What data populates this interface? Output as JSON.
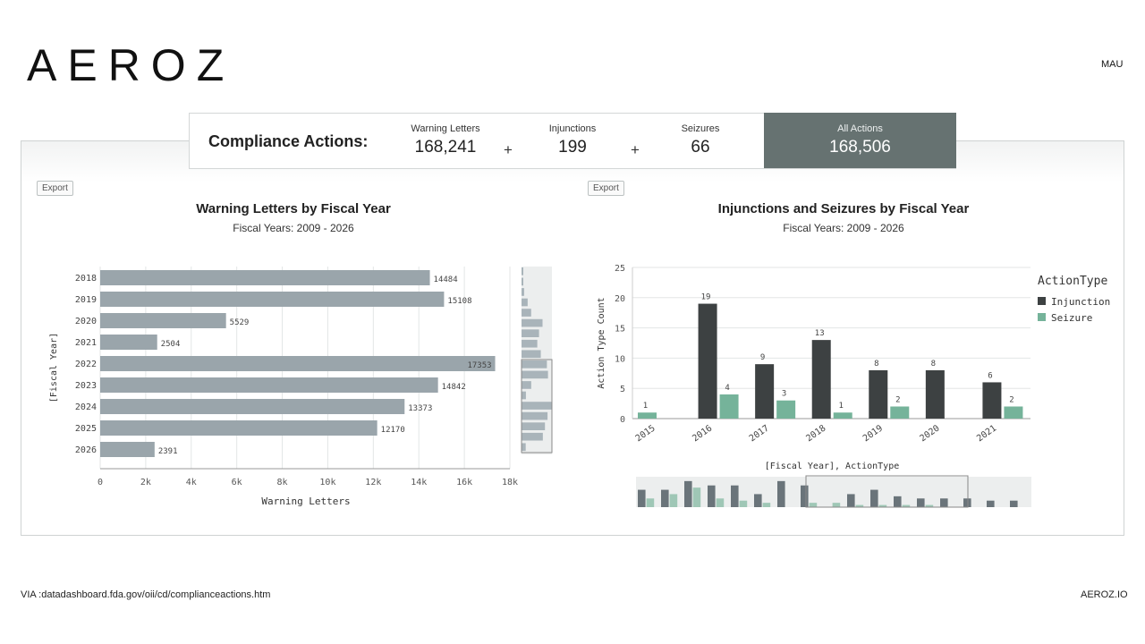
{
  "brand": "AEROZ",
  "tag": "MAU",
  "summary": {
    "title": "Compliance Actions:",
    "warning_letters": {
      "label": "Warning Letters",
      "value": "168,241"
    },
    "injunctions": {
      "label": "Injunctions",
      "value": "199"
    },
    "seizures": {
      "label": "Seizures",
      "value": "66"
    },
    "plus": "+",
    "all_actions": {
      "label": "All Actions",
      "value": "168,506"
    }
  },
  "export_label": "Export",
  "footer": {
    "source": "VIA :datadashboard.fda.gov/oii/cd/complianceactions.htm",
    "site": "AEROZ.IO"
  },
  "chart_data": [
    {
      "type": "bar",
      "orientation": "horizontal",
      "title": "Warning Letters by Fiscal Year",
      "subtitle": "Fiscal Years: 2009 - 2026",
      "ylabel": "[Fiscal Year]",
      "xlabel": "Warning Letters",
      "categories": [
        "2018",
        "2019",
        "2020",
        "2021",
        "2022",
        "2023",
        "2024",
        "2025",
        "2026"
      ],
      "values": [
        14484,
        15108,
        5529,
        2504,
        17353,
        14842,
        13373,
        12170,
        2391
      ],
      "xlim": [
        0,
        18000
      ],
      "xticks": [
        0,
        2000,
        4000,
        6000,
        8000,
        10000,
        12000,
        14000,
        16000,
        18000
      ],
      "xtick_labels": [
        "0",
        "2k",
        "4k",
        "6k",
        "8k",
        "10k",
        "12k",
        "14k",
        "16k",
        "18k"
      ],
      "bar_color": "#9aa5ab",
      "overview_values": [
        200,
        300,
        1500,
        3500,
        5500,
        12000,
        10000,
        9000,
        11000,
        14484,
        15108,
        5529,
        2504,
        17353,
        14842,
        13373,
        12170,
        2391
      ]
    },
    {
      "type": "bar",
      "title": "Injunctions and Seizures by Fiscal Year",
      "subtitle": "Fiscal Years: 2009 - 2026",
      "ylabel": "Action Type Count",
      "xlabel": "[Fiscal Year], ActionType",
      "legend_title": "ActionType",
      "categories": [
        "2015",
        "2016",
        "2017",
        "2018",
        "2019",
        "2020",
        "2021"
      ],
      "ylim": [
        0,
        25
      ],
      "yticks": [
        0,
        5,
        10,
        15,
        20,
        25
      ],
      "series": [
        {
          "name": "Injunction",
          "color": "#3d4142",
          "values": [
            null,
            19,
            9,
            13,
            8,
            8,
            6
          ]
        },
        {
          "name": "Seizure",
          "color": "#75b39a",
          "values": [
            1,
            4,
            3,
            1,
            2,
            null,
            2
          ]
        }
      ],
      "overview_injunction": [
        8,
        8,
        12,
        10,
        10,
        6,
        12,
        10,
        0,
        6,
        8,
        5,
        4,
        4,
        4,
        3,
        3
      ],
      "overview_seizure": [
        4,
        6,
        9,
        4,
        3,
        2,
        0,
        2,
        2,
        1,
        1,
        1,
        1,
        0,
        0,
        0,
        0
      ]
    }
  ]
}
